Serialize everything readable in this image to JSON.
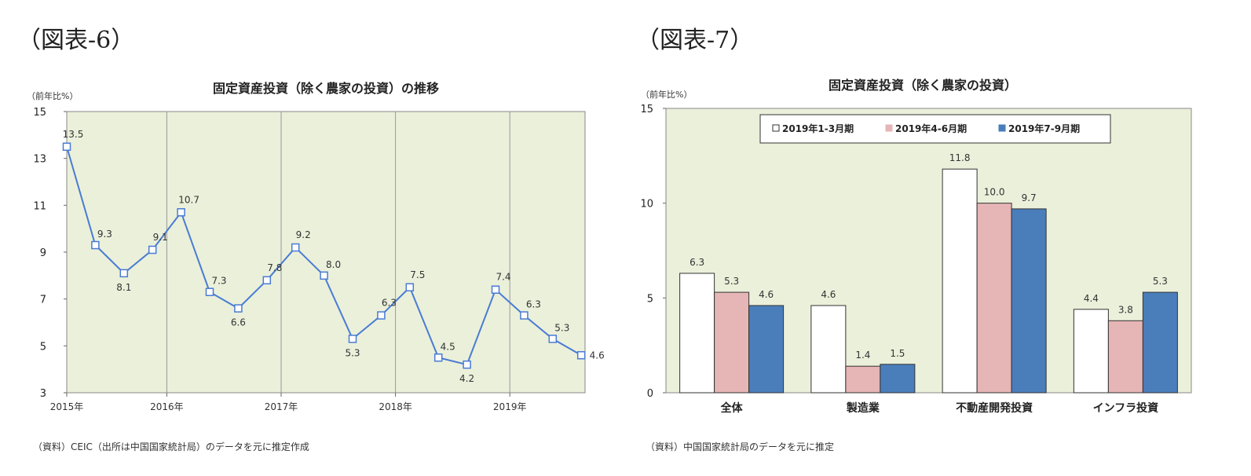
{
  "figures": [
    {
      "label": "（図表-6）",
      "source": "（資料）CEIC（出所は中国国家統計局）のデータを元に推定作成"
    },
    {
      "label": "（図表-7）",
      "source": "（資料）中国国家統計局のデータを元に推定"
    }
  ],
  "chart_data": [
    {
      "type": "line",
      "title": "固定資産投資（除く農家の投資）の推移",
      "ylabel": "（前年比%）",
      "xlabel": "",
      "ylim": [
        3,
        15
      ],
      "yticks": [
        3,
        5,
        7,
        9,
        11,
        13,
        15
      ],
      "x_tick_labels": [
        "2015年",
        "2016年",
        "2017年",
        "2018年",
        "2019年"
      ],
      "grid": "vertical lines at year boundaries",
      "colors": {
        "line": "#4a7bd4",
        "plot_bg": "#eaf0da",
        "grid": "#999999"
      },
      "series": [
        {
          "name": "",
          "x": [
            "2015Q1",
            "2015Q2",
            "2015Q3",
            "2015Q4",
            "2016Q1",
            "2016Q2",
            "2016Q3",
            "2016Q4",
            "2017Q1",
            "2017Q2",
            "2017Q3",
            "2017Q4",
            "2018Q1",
            "2018Q2",
            "2018Q3",
            "2018Q4",
            "2019Q1",
            "2019Q2",
            "2019Q3"
          ],
          "values": [
            13.5,
            9.3,
            8.1,
            9.1,
            10.7,
            7.3,
            6.6,
            7.8,
            9.2,
            8.0,
            5.3,
            6.3,
            7.5,
            4.5,
            4.2,
            7.4,
            6.3,
            5.3,
            4.6
          ],
          "labels": [
            "13.5",
            "9.3",
            "8.1",
            "9.1",
            "10.7",
            "7.3",
            "6.6",
            "7.8",
            "9.2",
            "8.0",
            "5.3",
            "6.3",
            "7.5",
            "4.5",
            "4.2",
            "7.4",
            "6.3",
            "5.3",
            "4.6"
          ]
        }
      ]
    },
    {
      "type": "bar",
      "title": "固定資産投資（除く農家の投資）",
      "ylabel": "（前年比%）",
      "xlabel": "",
      "ylim": [
        0,
        15
      ],
      "yticks": [
        0,
        5,
        10,
        15
      ],
      "legend_position": "top-center",
      "colors": {
        "plot_bg": "#eaf0da"
      },
      "categories": [
        "全体",
        "製造業",
        "不動産開発投資",
        "インフラ投資"
      ],
      "series": [
        {
          "name": "2019年1-3月期",
          "color": "#ffffff",
          "values": [
            6.3,
            4.6,
            11.8,
            4.4
          ],
          "labels": [
            "6.3",
            "4.6",
            "11.8",
            "4.4"
          ]
        },
        {
          "name": "2019年4-6月期",
          "color": "#e6b5b5",
          "values": [
            5.3,
            1.4,
            10.0,
            3.8
          ],
          "labels": [
            "5.3",
            "1.4",
            "10.0",
            "3.8"
          ]
        },
        {
          "name": "2019年7-9月期",
          "color": "#4a7ebb",
          "values": [
            4.6,
            1.5,
            9.7,
            5.3
          ],
          "labels": [
            "4.6",
            "1.5",
            "9.7",
            "5.3"
          ]
        }
      ]
    }
  ]
}
